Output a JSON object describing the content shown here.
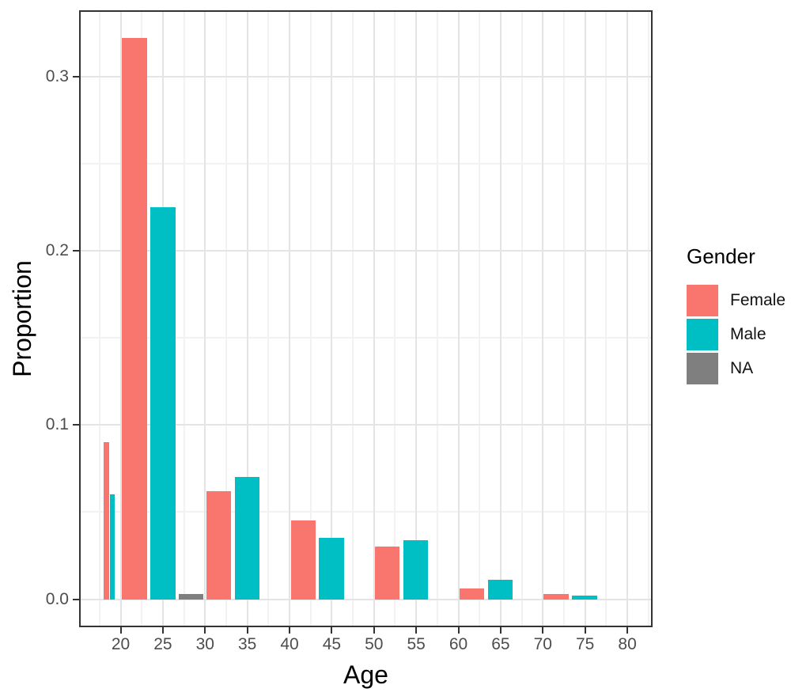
{
  "figure_title": "",
  "chart_data": {
    "type": "bar",
    "title": "",
    "xlabel": "Age",
    "ylabel": "Proportion",
    "grid": true,
    "legend": {
      "title": "Gender",
      "position": "right",
      "items": [
        {
          "label": "Female",
          "color": "#F8766D"
        },
        {
          "label": "Male",
          "color": "#00BFC4"
        },
        {
          "label": "NA",
          "color": "#7F7F7F"
        }
      ]
    },
    "series_colors": {
      "Female": "#F8766D",
      "Male": "#00BFC4",
      "NA": "#7F7F7F"
    },
    "categories": [
      "18-20",
      "20-30",
      "30-40",
      "40-50",
      "50-60",
      "60-70",
      "70-80"
    ],
    "series": [
      {
        "name": "Female",
        "values": [
          0.09,
          0.322,
          0.062,
          0.045,
          0.03,
          0.006,
          0.003
        ]
      },
      {
        "name": "Male",
        "values": [
          0.06,
          0.225,
          0.07,
          0.035,
          0.034,
          0.011,
          0.002
        ]
      },
      {
        "name": "NA",
        "values": [
          null,
          0.003,
          null,
          null,
          null,
          null,
          null
        ]
      }
    ],
    "x_domain": [
      15.08,
      82.99
    ],
    "y_domain": [
      -0.0161,
      0.3381
    ],
    "x_ticks": {
      "major": [
        20,
        25,
        30,
        35,
        40,
        45,
        50,
        55,
        60,
        65,
        70,
        75,
        80
      ],
      "labels": [
        "20",
        "25",
        "30",
        "35",
        "40",
        "45",
        "50",
        "55",
        "60",
        "65",
        "70",
        "75",
        "80"
      ],
      "minor": [
        17.5,
        22.5,
        27.5,
        32.5,
        37.5,
        42.5,
        47.5,
        52.5,
        57.5,
        62.5,
        67.5,
        72.5,
        77.5,
        82.5
      ]
    },
    "y_ticks": {
      "major": [
        0.0,
        0.1,
        0.2,
        0.3
      ],
      "labels": [
        "0.0",
        "0.1",
        "0.2",
        "0.3"
      ],
      "minor": [
        0.05,
        0.15,
        0.25
      ]
    },
    "bars": [
      {
        "bin": "18-20",
        "gender": "Female",
        "x0": 18.02,
        "x1": 18.65,
        "proportion": 0.09
      },
      {
        "bin": "18-20",
        "gender": "Male",
        "x0": 18.74,
        "x1": 19.3,
        "proportion": 0.06
      },
      {
        "bin": "20-30",
        "gender": "Female",
        "x0": 20.1,
        "x1": 23.15,
        "proportion": 0.322
      },
      {
        "bin": "20-30",
        "gender": "Male",
        "x0": 23.49,
        "x1": 26.55,
        "proportion": 0.225
      },
      {
        "bin": "20-30",
        "gender": "NA",
        "x0": 26.87,
        "x1": 29.82,
        "proportion": 0.003
      },
      {
        "bin": "30-40",
        "gender": "Female",
        "x0": 30.2,
        "x1": 33.1,
        "proportion": 0.062
      },
      {
        "bin": "30-40",
        "gender": "Male",
        "x0": 33.51,
        "x1": 36.47,
        "proportion": 0.07
      },
      {
        "bin": "40-50",
        "gender": "Female",
        "x0": 40.22,
        "x1": 43.1,
        "proportion": 0.045
      },
      {
        "bin": "40-50",
        "gender": "Male",
        "x0": 43.5,
        "x1": 46.47,
        "proportion": 0.035
      },
      {
        "bin": "50-60",
        "gender": "Female",
        "x0": 50.12,
        "x1": 53.02,
        "proportion": 0.03
      },
      {
        "bin": "50-60",
        "gender": "Male",
        "x0": 53.46,
        "x1": 56.42,
        "proportion": 0.034
      },
      {
        "bin": "60-70",
        "gender": "Female",
        "x0": 60.17,
        "x1": 63.07,
        "proportion": 0.006
      },
      {
        "bin": "60-70",
        "gender": "Male",
        "x0": 63.48,
        "x1": 66.44,
        "proportion": 0.011
      },
      {
        "bin": "70-80",
        "gender": "Female",
        "x0": 70.1,
        "x1": 73.07,
        "proportion": 0.003
      },
      {
        "bin": "70-80",
        "gender": "Male",
        "x0": 73.45,
        "x1": 76.4,
        "proportion": 0.002
      }
    ]
  }
}
